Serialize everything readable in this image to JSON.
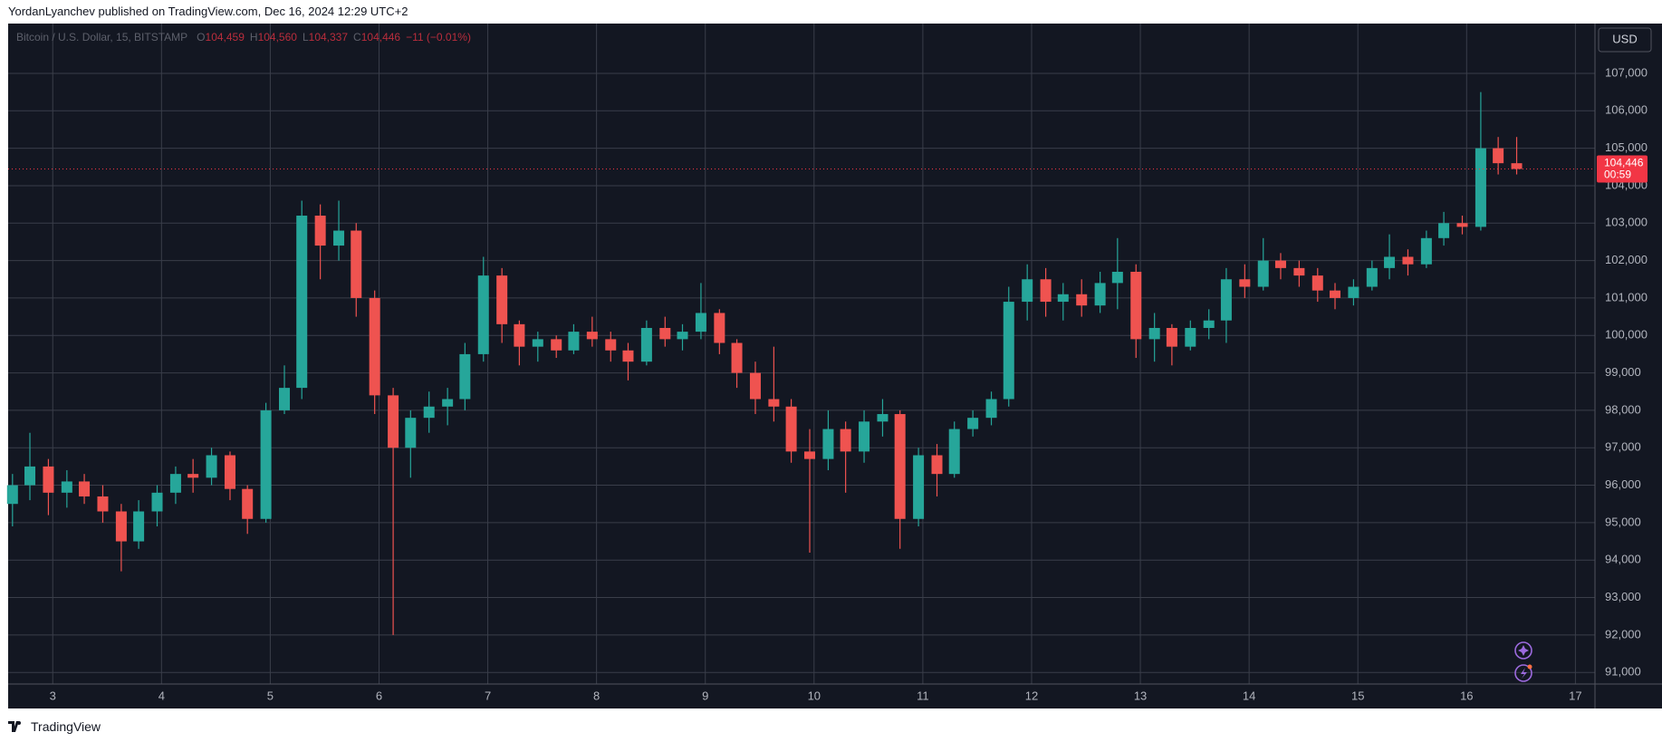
{
  "header": {
    "text": "YordanLyanchev published on TradingView.com, Dec 16, 2024 12:29 UTC+2"
  },
  "footer": {
    "brand": "TradingView"
  },
  "chart_data": {
    "type": "candlestick",
    "legend": {
      "symbol": "Bitcoin / U.S. Dollar, 15, BITSTAMP",
      "items": [
        {
          "key": "O",
          "value": "104,459"
        },
        {
          "key": "H",
          "value": "104,560"
        },
        {
          "key": "L",
          "value": "104,337"
        },
        {
          "key": "C",
          "value": "104,446"
        }
      ],
      "change": "−11 (−0.01%)"
    },
    "currency": "USD",
    "last_price": {
      "value": 104446,
      "label": "104,446"
    },
    "countdown": "00:59",
    "up_color": "#26a69a",
    "down_color": "#ef5350",
    "last_color": "#f23645",
    "grid": true,
    "xlim": [
      2.59,
      17.18
    ],
    "xticks": [
      3,
      4,
      5,
      6,
      7,
      8,
      9,
      10,
      11,
      12,
      13,
      14,
      15,
      16,
      17
    ],
    "ylim": [
      90690,
      108330
    ],
    "yticks": [
      {
        "value": 91000,
        "label": "91,000"
      },
      {
        "value": 92000,
        "label": "92,000"
      },
      {
        "value": 93000,
        "label": "93,000"
      },
      {
        "value": 94000,
        "label": "94,000"
      },
      {
        "value": 95000,
        "label": "95,000"
      },
      {
        "value": 96000,
        "label": "96,000"
      },
      {
        "value": 97000,
        "label": "97,000"
      },
      {
        "value": 98000,
        "label": "98,000"
      },
      {
        "value": 99000,
        "label": "99,000"
      },
      {
        "value": 100000,
        "label": "100,000"
      },
      {
        "value": 101000,
        "label": "101,000"
      },
      {
        "value": 102000,
        "label": "102,000"
      },
      {
        "value": 103000,
        "label": "103,000"
      },
      {
        "value": 104000,
        "label": "104,000"
      },
      {
        "value": 105000,
        "label": "105,000"
      },
      {
        "value": 106000,
        "label": "106,000"
      },
      {
        "value": 107000,
        "label": "107,000"
      }
    ],
    "x": [
      2.63,
      2.79,
      2.96,
      3.13,
      3.29,
      3.46,
      3.63,
      3.79,
      3.96,
      4.13,
      4.29,
      4.46,
      4.63,
      4.79,
      4.96,
      5.13,
      5.29,
      5.46,
      5.63,
      5.79,
      5.96,
      6.13,
      6.29,
      6.46,
      6.63,
      6.79,
      6.96,
      7.13,
      7.29,
      7.46,
      7.63,
      7.79,
      7.96,
      8.13,
      8.29,
      8.46,
      8.63,
      8.79,
      8.96,
      9.13,
      9.29,
      9.46,
      9.63,
      9.79,
      9.96,
      10.13,
      10.29,
      10.46,
      10.63,
      10.79,
      10.96,
      11.13,
      11.29,
      11.46,
      11.63,
      11.79,
      11.96,
      12.13,
      12.29,
      12.46,
      12.63,
      12.79,
      12.96,
      13.13,
      13.29,
      13.46,
      13.63,
      13.79,
      13.96,
      14.13,
      14.29,
      14.46,
      14.63,
      14.79,
      14.96,
      15.13,
      15.29,
      15.46,
      15.63,
      15.79,
      15.96,
      16.13,
      16.29,
      16.46
    ],
    "open": [
      95500,
      96000,
      96500,
      95800,
      96100,
      95700,
      95300,
      94500,
      95300,
      95800,
      96300,
      96200,
      96800,
      95900,
      95100,
      98000,
      98600,
      103200,
      102400,
      102800,
      101000,
      98400,
      97000,
      97800,
      98100,
      98300,
      99500,
      101600,
      100300,
      99700,
      99900,
      99600,
      100100,
      99900,
      99600,
      99300,
      100200,
      99900,
      100100,
      100600,
      99800,
      99000,
      98300,
      98100,
      96900,
      96700,
      97500,
      96900,
      97700,
      97900,
      95100,
      96800,
      96300,
      97500,
      97800,
      98300,
      100900,
      101500,
      100900,
      101100,
      100800,
      101400,
      101700,
      99900,
      100200,
      99700,
      100200,
      100400,
      101500,
      101300,
      102000,
      101800,
      101600,
      101200,
      101000,
      101300,
      101800,
      102100,
      101900,
      102600,
      103000,
      102900,
      105000,
      104600
    ],
    "high": [
      96300,
      97400,
      96700,
      96400,
      96300,
      96000,
      95500,
      95600,
      96000,
      96500,
      96700,
      97000,
      96900,
      96000,
      98200,
      99200,
      103600,
      103500,
      103600,
      103000,
      101200,
      98600,
      98000,
      98500,
      98600,
      99800,
      102100,
      101800,
      100400,
      100100,
      100000,
      100300,
      100500,
      100100,
      99800,
      100400,
      100500,
      100300,
      101400,
      100700,
      99900,
      99300,
      99700,
      98300,
      97500,
      98000,
      97700,
      98000,
      98300,
      98000,
      97000,
      97100,
      97700,
      98000,
      98500,
      101300,
      101900,
      101800,
      101400,
      101500,
      101700,
      102600,
      101900,
      100600,
      100300,
      100400,
      100700,
      101800,
      101900,
      102600,
      102200,
      102000,
      101800,
      101400,
      101500,
      102000,
      102700,
      102300,
      102800,
      103300,
      103200,
      106500,
      105300,
      105300
    ],
    "low": [
      94900,
      95600,
      95200,
      95400,
      95500,
      95000,
      93700,
      94300,
      94900,
      95500,
      95800,
      96000,
      95600,
      94700,
      95000,
      97900,
      98300,
      101500,
      102000,
      100500,
      97900,
      92000,
      96200,
      97400,
      97600,
      98000,
      99300,
      99800,
      99200,
      99300,
      99400,
      99500,
      99700,
      99300,
      98800,
      99200,
      99700,
      99600,
      99900,
      99500,
      98600,
      97900,
      97700,
      96600,
      94200,
      96400,
      95800,
      96600,
      97300,
      94300,
      94900,
      95700,
      96200,
      97300,
      97600,
      98100,
      100400,
      100500,
      100400,
      100500,
      100600,
      100700,
      99400,
      99300,
      99200,
      99600,
      99900,
      99800,
      101000,
      101200,
      101500,
      101300,
      100900,
      100700,
      100800,
      101200,
      101500,
      101600,
      101800,
      102400,
      102700,
      102800,
      104300,
      104300
    ],
    "close": [
      96000,
      96500,
      95800,
      96100,
      95700,
      95300,
      94500,
      95300,
      95800,
      96300,
      96200,
      96800,
      95900,
      95100,
      98000,
      98600,
      103200,
      102400,
      102800,
      101000,
      98400,
      97000,
      97800,
      98100,
      98300,
      99500,
      101600,
      100300,
      99700,
      99900,
      99600,
      100100,
      99900,
      99600,
      99300,
      100200,
      99900,
      100100,
      100600,
      99800,
      99000,
      98300,
      98100,
      96900,
      96700,
      97500,
      96900,
      97700,
      97900,
      95100,
      96800,
      96300,
      97500,
      97800,
      98300,
      100900,
      101500,
      100900,
      101100,
      100800,
      101400,
      101700,
      99900,
      100200,
      99700,
      100200,
      100400,
      101500,
      101300,
      102000,
      101800,
      101600,
      101200,
      101000,
      101300,
      101800,
      102100,
      101900,
      102600,
      103000,
      102900,
      105000,
      104600,
      104446
    ]
  }
}
